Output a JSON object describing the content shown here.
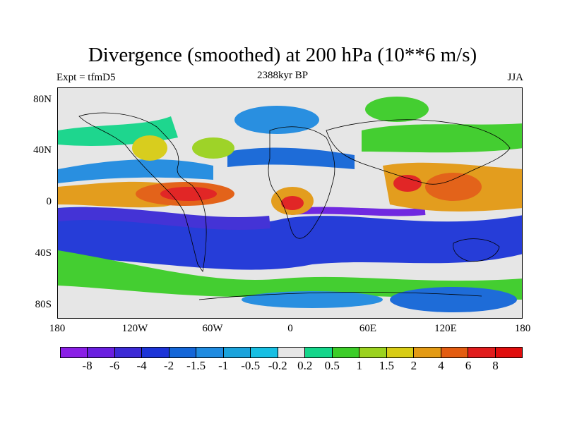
{
  "title": "Divergence (smoothed) at 200 hPa (10**6 m/s)",
  "subtitle_left": "Expt = tfmD5",
  "subtitle_center": "2388kyr BP",
  "subtitle_right": "JJA",
  "lat_ticks": [
    "80N",
    "40N",
    "0",
    "40S",
    "80S"
  ],
  "lon_ticks": [
    "180",
    "120W",
    "60W",
    "0",
    "60E",
    "120E",
    "180"
  ],
  "colorbar": {
    "labels": [
      "-8",
      "-6",
      "-4",
      "-2",
      "-1.5",
      "-1",
      "-0.5",
      "-0.2",
      "0.2",
      "0.5",
      "1",
      "1.5",
      "2",
      "4",
      "6",
      "8"
    ],
    "colors": [
      "#8a1fe6",
      "#6a1fe0",
      "#3c2ad6",
      "#1c34d8",
      "#1466d8",
      "#1f8be0",
      "#1aa3dc",
      "#17bfe3",
      "#e6e6e6",
      "#14d68a",
      "#3ccd28",
      "#9bd21e",
      "#d8cc14",
      "#e39a14",
      "#e35c10",
      "#e11c1c",
      "#e00d0d"
    ]
  },
  "map_colors": {
    "background": "#e6e6e6",
    "land_outline": "#000000"
  }
}
